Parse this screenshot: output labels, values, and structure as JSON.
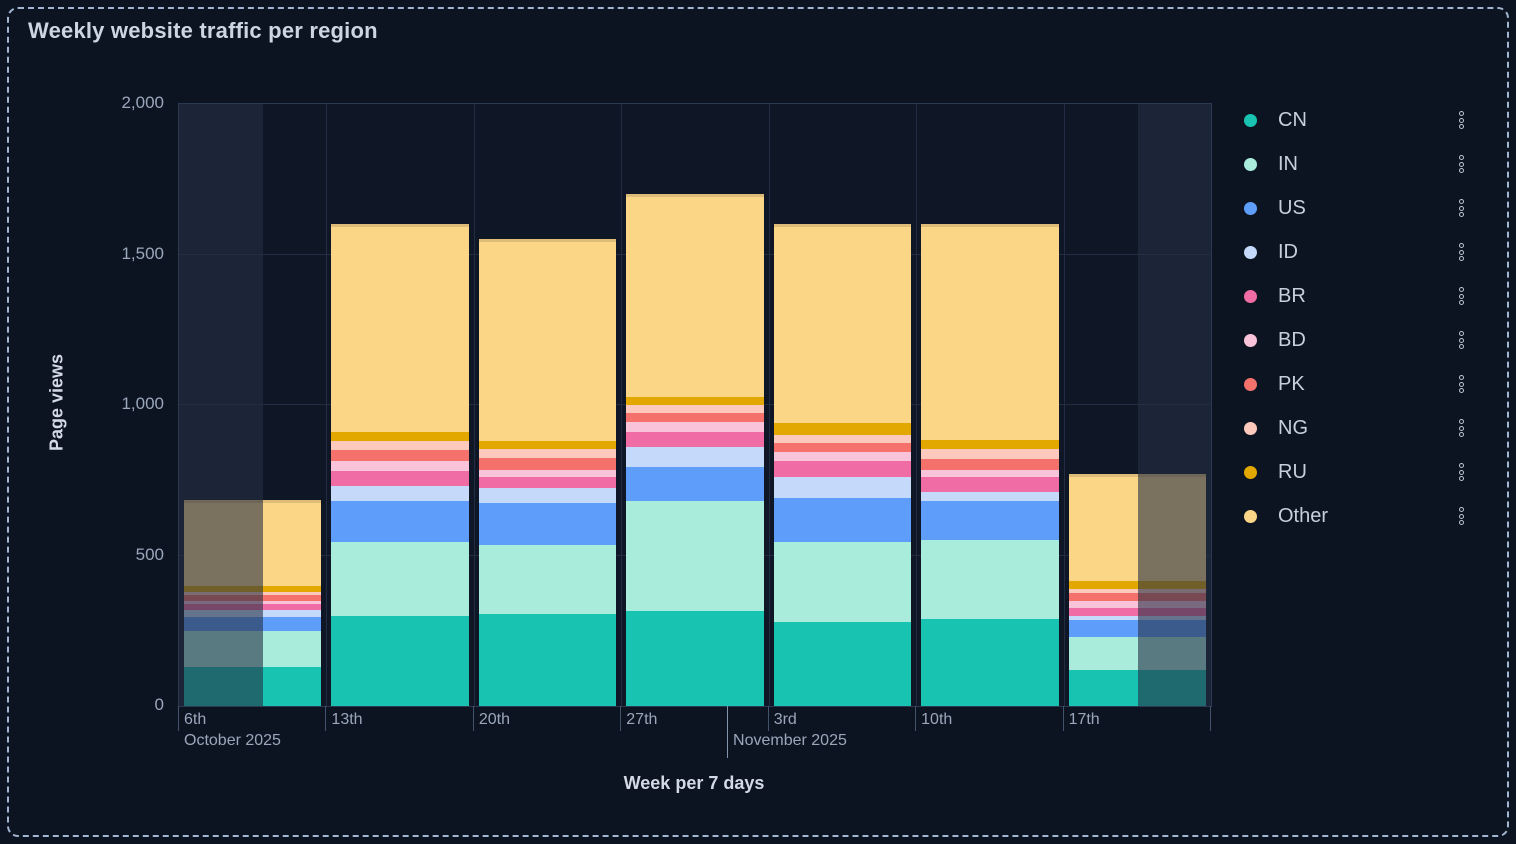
{
  "panel": {
    "title": "Weekly website traffic per region"
  },
  "chart_data": {
    "type": "bar",
    "stacked": true,
    "title": "Weekly website traffic per region",
    "xlabel": "Week per 7 days",
    "ylabel": "Page views",
    "ylim": [
      0,
      2000
    ],
    "grid": true,
    "legend_position": "right",
    "yticks": [
      {
        "value": 0,
        "label": "0"
      },
      {
        "value": 500,
        "label": "500"
      },
      {
        "value": 1000,
        "label": "1,000"
      },
      {
        "value": 1500,
        "label": "1,500"
      },
      {
        "value": 2000,
        "label": "2,000"
      }
    ],
    "categories": [
      "6th",
      "13th",
      "20th",
      "27th",
      "3rd",
      "10th",
      "17th"
    ],
    "month_markers": [
      {
        "label": "October 2025",
        "x_fraction": 0.0,
        "tick": false
      },
      {
        "label": "November 2025",
        "x_fraction": 0.532,
        "tick": true
      }
    ],
    "series": [
      {
        "name": "CN",
        "color": "#18c3b2",
        "values": [
          130,
          300,
          305,
          315,
          280,
          290,
          120
        ]
      },
      {
        "name": "IN",
        "color": "#a9ecdc",
        "values": [
          120,
          245,
          230,
          365,
          265,
          260,
          110
        ]
      },
      {
        "name": "US",
        "color": "#5e9dfa",
        "values": [
          45,
          135,
          140,
          115,
          145,
          130,
          55
        ]
      },
      {
        "name": "ID",
        "color": "#c5d9fa",
        "values": [
          25,
          50,
          50,
          65,
          70,
          30,
          15
        ]
      },
      {
        "name": "BR",
        "color": "#ef6da4",
        "values": [
          20,
          50,
          35,
          50,
          55,
          50,
          25
        ]
      },
      {
        "name": "BD",
        "color": "#f9c4da",
        "values": [
          10,
          35,
          25,
          35,
          30,
          25,
          25
        ]
      },
      {
        "name": "PK",
        "color": "#f5726c",
        "values": [
          20,
          35,
          40,
          30,
          30,
          35,
          25
        ]
      },
      {
        "name": "NG",
        "color": "#fdc9bd",
        "values": [
          10,
          30,
          30,
          25,
          25,
          35,
          15
        ]
      },
      {
        "name": "RU",
        "color": "#e2a800",
        "values": [
          20,
          30,
          25,
          25,
          40,
          30,
          25
        ]
      },
      {
        "name": "Other",
        "color": "#fbd687",
        "values": [
          285,
          690,
          670,
          675,
          660,
          715,
          355
        ]
      }
    ],
    "totals": [
      685,
      1600,
      1550,
      1700,
      1600,
      1600,
      770
    ],
    "layout": {
      "dim_left_end_fraction": 0.0814,
      "dim_right_start_fraction": 0.9293
    }
  }
}
